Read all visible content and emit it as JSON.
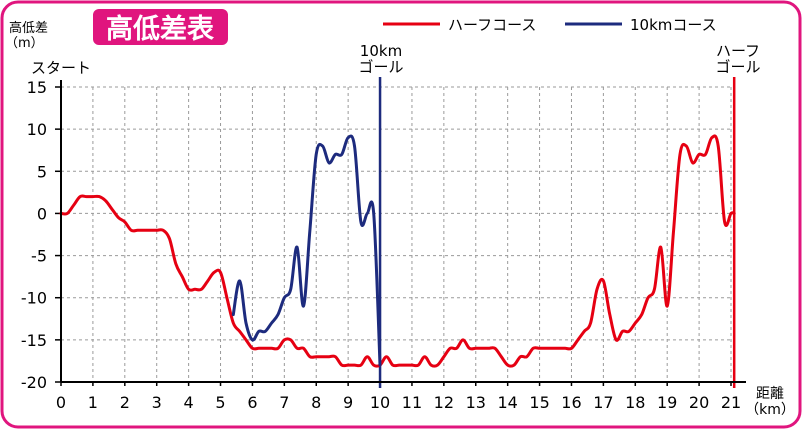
{
  "colors": {
    "frame": "#e0157e",
    "title_bg": "#e0157e",
    "half": "#e60012",
    "ten": "#1d2b7e",
    "grid": "#9a9a9a",
    "axis": "#000000"
  },
  "chart_data": {
    "type": "line",
    "title": "高低差表",
    "ylabel_line1": "高低差",
    "ylabel_line2": "（m）",
    "xlabel_line1": "距離",
    "xlabel_line2": "（km）",
    "xlim": [
      0,
      21
    ],
    "ylim": [
      -20,
      15
    ],
    "x_ticks": [
      0,
      1,
      2,
      3,
      4,
      5,
      6,
      7,
      8,
      9,
      10,
      11,
      12,
      13,
      14,
      15,
      16,
      17,
      18,
      19,
      20,
      21
    ],
    "x_tick_labels": [
      "0",
      "1",
      "2",
      "3",
      "4",
      "5",
      "6",
      "7",
      "8",
      "9",
      "10",
      "11",
      "12",
      "13",
      "14",
      "15",
      "16",
      "17",
      "18",
      "19",
      "20",
      "21"
    ],
    "y_ticks": [
      -20,
      -15,
      -10,
      -5,
      0,
      5,
      10,
      15
    ],
    "y_tick_labels": [
      "-20",
      "-15",
      "-10",
      "-5",
      "0",
      "5",
      "10",
      "15"
    ],
    "grid": true,
    "legend_position": "top-right",
    "annotations": {
      "start": "スタート",
      "ten_goal_1": "10km",
      "ten_goal_2": "ゴール",
      "half_goal_1": "ハーフ",
      "half_goal_2": "ゴール"
    },
    "markers": [
      {
        "series": "ten",
        "x": 10
      },
      {
        "series": "half",
        "x": 21.1
      }
    ],
    "series": [
      {
        "key": "half",
        "name": "ハーフコース",
        "x": [
          0,
          0.2,
          0.4,
          0.6,
          0.8,
          1.0,
          1.2,
          1.4,
          1.6,
          1.8,
          2.0,
          2.2,
          2.4,
          2.6,
          2.8,
          3.0,
          3.2,
          3.4,
          3.6,
          3.8,
          4.0,
          4.2,
          4.4,
          4.6,
          4.8,
          5.0,
          5.2,
          5.4,
          5.6,
          5.8,
          6.0,
          6.2,
          6.4,
          6.6,
          6.8,
          7.0,
          7.2,
          7.4,
          7.6,
          7.8,
          8.0,
          8.2,
          8.4,
          8.6,
          8.8,
          9.0,
          9.2,
          9.4,
          9.6,
          9.8,
          10.0,
          10.2,
          10.4,
          10.6,
          10.8,
          11.0,
          11.2,
          11.4,
          11.6,
          11.8,
          12.0,
          12.2,
          12.4,
          12.6,
          12.8,
          13.0,
          13.2,
          13.4,
          13.6,
          13.8,
          14.0,
          14.2,
          14.4,
          14.6,
          14.8,
          15.0,
          15.2,
          15.4,
          15.6,
          15.8,
          16.0,
          16.2,
          16.4,
          16.6,
          16.8,
          17.0,
          17.2,
          17.4,
          17.6,
          17.8,
          18.0,
          18.2,
          18.4,
          18.6,
          18.8,
          19.0,
          19.2,
          19.4,
          19.6,
          19.8,
          20.0,
          20.2,
          20.4,
          20.6,
          20.8,
          21.0,
          21.1
        ],
        "values": [
          0,
          0,
          1,
          2,
          2,
          2,
          2,
          1.5,
          0.5,
          -0.5,
          -1,
          -2,
          -2,
          -2,
          -2,
          -2,
          -2,
          -3,
          -6,
          -7.5,
          -9,
          -9,
          -9,
          -8,
          -7,
          -7,
          -10,
          -13,
          -14,
          -15,
          -16,
          -16,
          -16,
          -16,
          -16,
          -15,
          -15,
          -16,
          -16,
          -17,
          -17,
          -17,
          -17,
          -17,
          -18,
          -18,
          -18,
          -18,
          -17,
          -18,
          -18,
          -17,
          -18,
          -18,
          -18,
          -18,
          -18,
          -17,
          -18,
          -18,
          -17,
          -16,
          -16,
          -15,
          -16,
          -16,
          -16,
          -16,
          -16,
          -17,
          -18,
          -18,
          -17,
          -17,
          -16,
          -16,
          -16,
          -16,
          -16,
          -16,
          -16,
          -15,
          -14,
          -13,
          -9,
          -8,
          -12,
          -15,
          -14,
          -14,
          -13,
          -12,
          -10,
          -9,
          -4,
          -11,
          -2,
          7,
          8,
          6,
          7,
          7,
          9,
          8,
          -1,
          0,
          0
        ]
      },
      {
        "key": "ten",
        "name": "10kmコース",
        "x": [
          5.4,
          5.6,
          5.8,
          6.0,
          6.2,
          6.4,
          6.6,
          6.8,
          7.0,
          7.2,
          7.4,
          7.6,
          7.8,
          8.0,
          8.2,
          8.4,
          8.6,
          8.8,
          9.0,
          9.2,
          9.4,
          9.6,
          9.8,
          10.0
        ],
        "values": [
          -12,
          -8,
          -13,
          -15,
          -14,
          -14,
          -13,
          -12,
          -10,
          -9,
          -4,
          -11,
          -2,
          7,
          8,
          6,
          7,
          7,
          9,
          8,
          -1,
          0,
          0,
          -18
        ]
      }
    ]
  }
}
